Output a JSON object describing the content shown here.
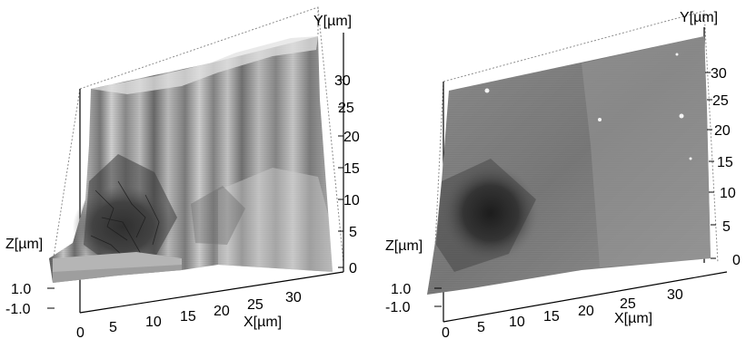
{
  "plots": [
    {
      "y_axis": {
        "label": "Y[µm]",
        "ticks": [
          "0",
          "5",
          "10",
          "15",
          "20",
          "25",
          "30"
        ]
      },
      "x_axis": {
        "label": "X[µm]",
        "ticks": [
          "0",
          "5",
          "10",
          "15",
          "20",
          "25",
          "30"
        ]
      },
      "z_axis": {
        "label": "Z[µm]",
        "ticks": [
          "1.0",
          "-1.0"
        ]
      },
      "surface": "rough-fractured"
    },
    {
      "y_axis": {
        "label": "Y[µm]",
        "ticks": [
          "0",
          "5",
          "10",
          "15",
          "20",
          "25",
          "30"
        ]
      },
      "x_axis": {
        "label": "X[µm]",
        "ticks": [
          "0",
          "5",
          "10",
          "15",
          "20",
          "25",
          "30"
        ]
      },
      "z_axis": {
        "label": "Z[µm]",
        "ticks": [
          "1.0",
          "-1.0"
        ]
      },
      "surface": "smooth-polished"
    }
  ],
  "colors": {
    "surface_light": "#d9d9d9",
    "surface_mid": "#8a8a8a",
    "surface_dark": "#1e1e1e",
    "grid": "#8c8c8c"
  }
}
